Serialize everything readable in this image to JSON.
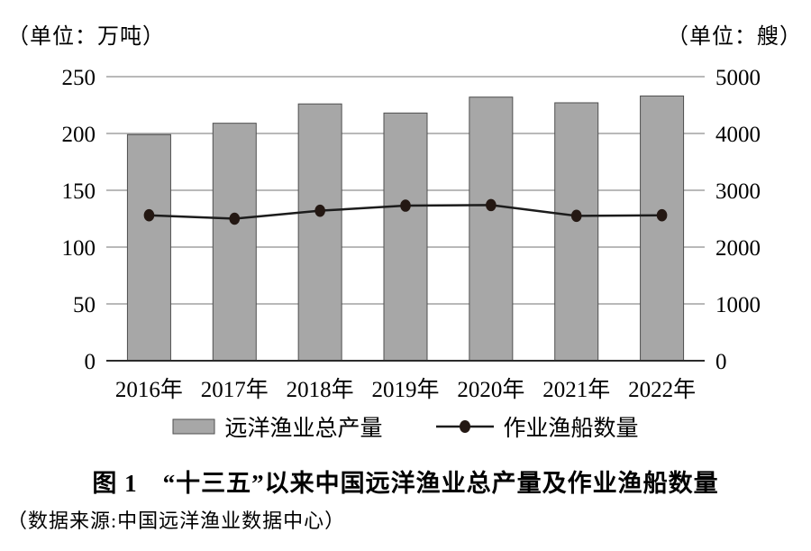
{
  "page": {
    "title": "图 1　“十三五”以来中国远洋渔业总产量及作业渔船数量",
    "source": "（数据来源:中国远洋渔业数据中心）"
  },
  "chart_data": {
    "type": "bar+line",
    "title": "图 1　“十三五”以来中国远洋渔业总产量及作业渔船数量",
    "categories": [
      "2016年",
      "2017年",
      "2018年",
      "2019年",
      "2020年",
      "2021年",
      "2022年"
    ],
    "series": [
      {
        "name": "远洋渔业总产量",
        "type": "bar",
        "axis": "left",
        "values": [
          199,
          209,
          226,
          218,
          232,
          227,
          233
        ]
      },
      {
        "name": "作业渔船数量",
        "type": "line",
        "axis": "right",
        "values": [
          2560,
          2500,
          2640,
          2730,
          2740,
          2550,
          2560
        ]
      }
    ],
    "left_axis": {
      "unit_label": "（单位：万吨）",
      "ticks": [
        0,
        50,
        100,
        150,
        200,
        250
      ],
      "range": [
        0,
        250
      ]
    },
    "right_axis": {
      "unit_label": "（单位：艘）",
      "ticks": [
        0,
        1000,
        2000,
        3000,
        4000,
        5000
      ],
      "range": [
        0,
        5000
      ]
    },
    "grid": true,
    "legend_position": "bottom",
    "colors": {
      "bar_fill": "#a7a7a7",
      "bar_border": "#4f4f4f",
      "line": "#1c1c1c",
      "marker": "#241813",
      "grid": "#8f8f8f",
      "axis": "#2b2b2b"
    }
  }
}
